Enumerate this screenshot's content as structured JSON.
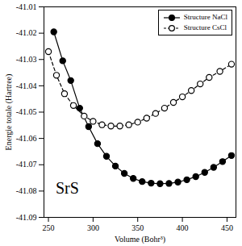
{
  "chart_data": {
    "type": "line",
    "x_label": "Volume (Bohr³)",
    "y_label": "Energie totale (Hartree)",
    "xlim": [
      245,
      460
    ],
    "xticks": [
      250,
      300,
      350,
      400,
      450
    ],
    "ylim": [
      -41.09,
      -41.01
    ],
    "yticks": [
      -41.09,
      -41.08,
      -41.07,
      -41.06,
      -41.05,
      -41.04,
      -41.03,
      -41.02,
      -41.01
    ],
    "legend": "top-right",
    "annotations": [
      {
        "text": "SrS",
        "x": 258,
        "y": -41.079
      }
    ],
    "series": [
      {
        "name": "Structure NaCl",
        "color": "#000000",
        "marker": "circle",
        "line_style": "solid",
        "x": [
          256,
          266,
          275,
          285,
          295,
          305,
          315,
          325,
          335,
          345,
          355,
          365,
          375,
          385,
          395,
          405,
          415,
          425,
          435,
          445,
          455
        ],
        "values": [
          -41.0195,
          -41.0305,
          -41.038,
          -41.0485,
          -41.0555,
          -41.062,
          -41.0668,
          -41.0705,
          -41.0733,
          -41.0752,
          -41.0764,
          -41.077,
          -41.0772,
          -41.0771,
          -41.0766,
          -41.0757,
          -41.0745,
          -41.0729,
          -41.071,
          -41.0688,
          -41.0665
        ]
      },
      {
        "name": "Structure CsCl",
        "color": "#000000",
        "marker": "open circle",
        "line_style": "dashed",
        "x": [
          250,
          259,
          268,
          278,
          290,
          300,
          310,
          320,
          330,
          340,
          350,
          360,
          370,
          380,
          390,
          400,
          410,
          420,
          430,
          442,
          455
        ],
        "values": [
          -41.027,
          -41.036,
          -41.043,
          -41.0475,
          -41.0515,
          -41.0535,
          -41.0548,
          -41.0553,
          -41.0553,
          -41.0548,
          -41.0538,
          -41.0523,
          -41.0505,
          -41.0485,
          -41.0463,
          -41.0442,
          -41.0418,
          -41.0393,
          -41.0368,
          -41.0345,
          -41.0318
        ]
      }
    ]
  }
}
